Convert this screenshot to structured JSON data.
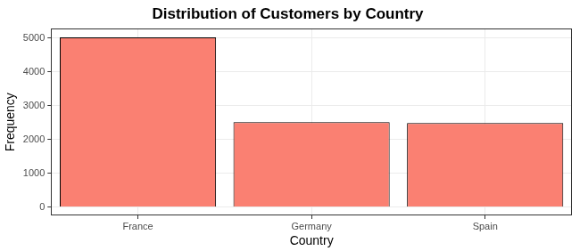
{
  "chart_data": {
    "type": "bar",
    "title": "Distribution of Customers by Country",
    "x_label": "Country",
    "y_label": "Frequency",
    "categories": [
      "France",
      "Germany",
      "Spain"
    ],
    "values": [
      5014,
      2509,
      2477
    ],
    "color": "#fa8072",
    "ylim": [
      -250,
      5265
    ],
    "yticks": [
      0,
      1000,
      2000,
      3000,
      4000,
      5000
    ],
    "grid": true
  }
}
